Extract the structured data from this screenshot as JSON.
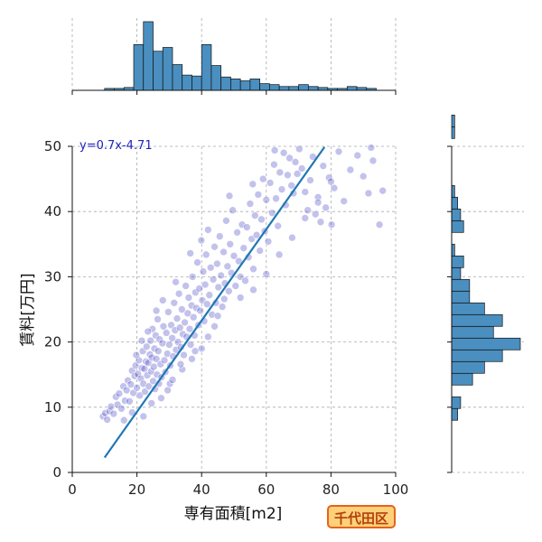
{
  "chart_data": {
    "type": "scatter",
    "xlabel": "専有面積[m2]",
    "ylabel": "賃料[万円]",
    "xlim": [
      0,
      100
    ],
    "ylim": [
      0,
      50
    ],
    "x_ticks": [
      0,
      20,
      40,
      60,
      80,
      100
    ],
    "y_ticks": [
      0,
      10,
      20,
      30,
      40,
      50
    ],
    "grid": true,
    "regression": {
      "label": "y=0.7x-4.71",
      "slope": 0.7,
      "intercept": -4.71,
      "x_range": [
        10,
        78
      ],
      "color": "#1f77b4"
    },
    "point_color": "#5050c8",
    "histogram_color": "#4a8fc0",
    "top_histogram": {
      "bin_start": 10,
      "bin_width": 3,
      "counts": [
        2,
        2,
        3,
        48,
        72,
        41,
        45,
        27,
        16,
        15,
        48,
        26,
        14,
        12,
        10,
        12,
        7,
        6,
        4,
        4,
        6,
        4,
        3,
        2,
        2,
        4,
        3,
        2
      ]
    },
    "right_histogram": {
      "bin_start": 8,
      "bin_width": 1.8,
      "counts": [
        2,
        3,
        0,
        7,
        11,
        17,
        23,
        14,
        17,
        11,
        6,
        6,
        3,
        4,
        1,
        0,
        4,
        3,
        2,
        1,
        0,
        0,
        0,
        0,
        1,
        1,
        0
      ]
    },
    "scatter_points": [
      [
        9.5,
        8.6
      ],
      [
        10.2,
        9.1
      ],
      [
        10.8,
        8.1
      ],
      [
        11.5,
        9.4
      ],
      [
        12.0,
        10.1
      ],
      [
        12.8,
        9.0
      ],
      [
        13.5,
        11.6
      ],
      [
        14.0,
        10.4
      ],
      [
        14.5,
        12.1
      ],
      [
        15.2,
        9.8
      ],
      [
        15.8,
        13.2
      ],
      [
        16.3,
        11.0
      ],
      [
        16.8,
        12.6
      ],
      [
        17.2,
        14.1
      ],
      [
        17.7,
        10.9
      ],
      [
        18.1,
        13.5
      ],
      [
        18.5,
        15.6
      ],
      [
        18.9,
        12.2
      ],
      [
        19.3,
        14.8
      ],
      [
        19.6,
        16.4
      ],
      [
        20.0,
        13.0
      ],
      [
        20.3,
        15.1
      ],
      [
        20.6,
        17.2
      ],
      [
        20.9,
        11.8
      ],
      [
        21.2,
        14.4
      ],
      [
        21.5,
        16.0
      ],
      [
        21.8,
        18.6
      ],
      [
        22.0,
        13.6
      ],
      [
        22.3,
        15.9
      ],
      [
        22.5,
        12.4
      ],
      [
        22.8,
        17.0
      ],
      [
        23.0,
        19.3
      ],
      [
        23.2,
        14.9
      ],
      [
        23.5,
        16.8
      ],
      [
        23.7,
        13.2
      ],
      [
        24.0,
        18.1
      ],
      [
        24.2,
        20.2
      ],
      [
        24.4,
        15.5
      ],
      [
        24.6,
        17.6
      ],
      [
        24.8,
        22.0
      ],
      [
        25.0,
        14.0
      ],
      [
        25.2,
        16.2
      ],
      [
        25.4,
        19.0
      ],
      [
        25.6,
        12.8
      ],
      [
        25.8,
        21.0
      ],
      [
        26.0,
        17.4
      ],
      [
        26.2,
        15.0
      ],
      [
        26.4,
        23.5
      ],
      [
        26.6,
        18.6
      ],
      [
        26.8,
        13.6
      ],
      [
        27.0,
        20.4
      ],
      [
        27.3,
        16.6
      ],
      [
        27.6,
        14.6
      ],
      [
        27.9,
        19.8
      ],
      [
        28.2,
        22.4
      ],
      [
        28.5,
        17.2
      ],
      [
        28.8,
        15.4
      ],
      [
        29.1,
        21.4
      ],
      [
        29.4,
        18.2
      ],
      [
        29.7,
        24.6
      ],
      [
        30.0,
        19.6
      ],
      [
        30.3,
        16.4
      ],
      [
        30.6,
        22.6
      ],
      [
        30.9,
        20.6
      ],
      [
        31.2,
        17.8
      ],
      [
        31.5,
        26.0
      ],
      [
        31.8,
        21.8
      ],
      [
        32.1,
        18.8
      ],
      [
        32.4,
        23.6
      ],
      [
        32.7,
        20.0
      ],
      [
        33.0,
        27.4
      ],
      [
        33.3,
        22.2
      ],
      [
        33.6,
        19.2
      ],
      [
        33.9,
        25.0
      ],
      [
        34.2,
        21.2
      ],
      [
        34.5,
        18.0
      ],
      [
        34.8,
        23.0
      ],
      [
        35.1,
        28.6
      ],
      [
        35.4,
        20.8
      ],
      [
        35.7,
        24.4
      ],
      [
        36.0,
        26.8
      ],
      [
        36.3,
        22.0
      ],
      [
        36.6,
        19.6
      ],
      [
        36.9,
        25.6
      ],
      [
        37.2,
        30.0
      ],
      [
        37.5,
        23.8
      ],
      [
        37.8,
        21.0
      ],
      [
        38.1,
        27.6
      ],
      [
        38.4,
        25.2
      ],
      [
        38.7,
        32.2
      ],
      [
        39.0,
        22.6
      ],
      [
        39.3,
        28.2
      ],
      [
        39.6,
        24.8
      ],
      [
        39.9,
        35.6
      ],
      [
        40.2,
        26.4
      ],
      [
        40.5,
        30.8
      ],
      [
        40.8,
        23.2
      ],
      [
        41.1,
        28.8
      ],
      [
        41.4,
        33.4
      ],
      [
        41.7,
        25.8
      ],
      [
        42.0,
        37.2
      ],
      [
        42.4,
        27.2
      ],
      [
        42.8,
        31.4
      ],
      [
        43.2,
        24.2
      ],
      [
        43.6,
        29.6
      ],
      [
        44.0,
        34.6
      ],
      [
        44.4,
        26.0
      ],
      [
        44.8,
        32.0
      ],
      [
        45.2,
        28.4
      ],
      [
        45.6,
        36.2
      ],
      [
        46.0,
        30.2
      ],
      [
        46.4,
        25.4
      ],
      [
        46.8,
        33.8
      ],
      [
        47.2,
        29.0
      ],
      [
        47.6,
        38.6
      ],
      [
        48.0,
        31.6
      ],
      [
        48.4,
        27.8
      ],
      [
        48.8,
        35.0
      ],
      [
        49.2,
        30.6
      ],
      [
        49.6,
        40.2
      ],
      [
        50.0,
        33.2
      ],
      [
        50.5,
        28.6
      ],
      [
        51.0,
        36.8
      ],
      [
        51.5,
        32.4
      ],
      [
        52.0,
        30.0
      ],
      [
        52.5,
        38.0
      ],
      [
        53.0,
        34.4
      ],
      [
        53.5,
        29.4
      ],
      [
        54.0,
        37.6
      ],
      [
        54.5,
        33.0
      ],
      [
        55.0,
        41.2
      ],
      [
        55.5,
        35.8
      ],
      [
        56.0,
        31.2
      ],
      [
        56.5,
        39.4
      ],
      [
        57.0,
        36.4
      ],
      [
        57.5,
        42.6
      ],
      [
        58.0,
        34.0
      ],
      [
        58.5,
        38.8
      ],
      [
        59.0,
        45.0
      ],
      [
        59.5,
        37.0
      ],
      [
        60.0,
        41.8
      ],
      [
        60.6,
        35.4
      ],
      [
        61.2,
        44.4
      ],
      [
        61.8,
        39.8
      ],
      [
        62.4,
        47.2
      ],
      [
        63.0,
        42.0
      ],
      [
        63.6,
        37.8
      ],
      [
        64.2,
        46.0
      ],
      [
        64.8,
        43.4
      ],
      [
        65.4,
        49.0
      ],
      [
        66.0,
        41.0
      ],
      [
        66.6,
        45.6
      ],
      [
        67.2,
        48.2
      ],
      [
        67.8,
        44.0
      ],
      [
        68.4,
        42.8
      ],
      [
        69.0,
        47.6
      ],
      [
        69.6,
        45.8
      ],
      [
        70.2,
        49.6
      ],
      [
        71.0,
        46.6
      ],
      [
        72.0,
        43.0
      ],
      [
        72.8,
        40.2
      ],
      [
        73.6,
        44.8
      ],
      [
        74.4,
        48.4
      ],
      [
        75.2,
        39.6
      ],
      [
        76.0,
        42.2
      ],
      [
        76.8,
        38.4
      ],
      [
        77.6,
        47.0
      ],
      [
        78.4,
        40.6
      ],
      [
        79.4,
        45.2
      ],
      [
        80.2,
        38.0
      ],
      [
        81.0,
        43.6
      ],
      [
        82.4,
        49.2
      ],
      [
        84.0,
        41.6
      ],
      [
        86.0,
        46.4
      ],
      [
        88.2,
        48.6
      ],
      [
        90.0,
        45.4
      ],
      [
        91.6,
        42.8
      ],
      [
        92.4,
        49.8
      ],
      [
        93.0,
        47.8
      ],
      [
        95.0,
        38.0
      ],
      [
        96.0,
        43.2
      ],
      [
        62.6,
        49.4
      ],
      [
        55.8,
        44.2
      ],
      [
        48.6,
        42.4
      ],
      [
        26.0,
        24.8
      ],
      [
        24.5,
        10.6
      ],
      [
        22.0,
        8.6
      ],
      [
        18.5,
        9.2
      ],
      [
        16.0,
        8.0
      ],
      [
        30.2,
        13.6
      ],
      [
        34.0,
        15.8
      ],
      [
        38.0,
        18.6
      ],
      [
        42.0,
        20.8
      ],
      [
        44.0,
        22.4
      ],
      [
        21.5,
        20.2
      ],
      [
        23.4,
        21.6
      ],
      [
        19.8,
        18.0
      ],
      [
        28.0,
        26.4
      ],
      [
        32.0,
        29.2
      ],
      [
        36.5,
        33.6
      ],
      [
        27.5,
        11.4
      ],
      [
        29.5,
        12.6
      ],
      [
        31.0,
        14.2
      ],
      [
        33.5,
        16.6
      ],
      [
        37.0,
        17.4
      ],
      [
        40.0,
        19.0
      ],
      [
        45.0,
        24.0
      ],
      [
        47.0,
        26.6
      ],
      [
        52.0,
        26.8
      ],
      [
        56.0,
        28.0
      ],
      [
        60.0,
        30.4
      ],
      [
        64.0,
        33.4
      ],
      [
        68.0,
        36.0
      ],
      [
        72.0,
        39.0
      ],
      [
        76.0,
        41.4
      ],
      [
        80.0,
        44.6
      ]
    ]
  },
  "badge": {
    "label": "千代田区"
  }
}
